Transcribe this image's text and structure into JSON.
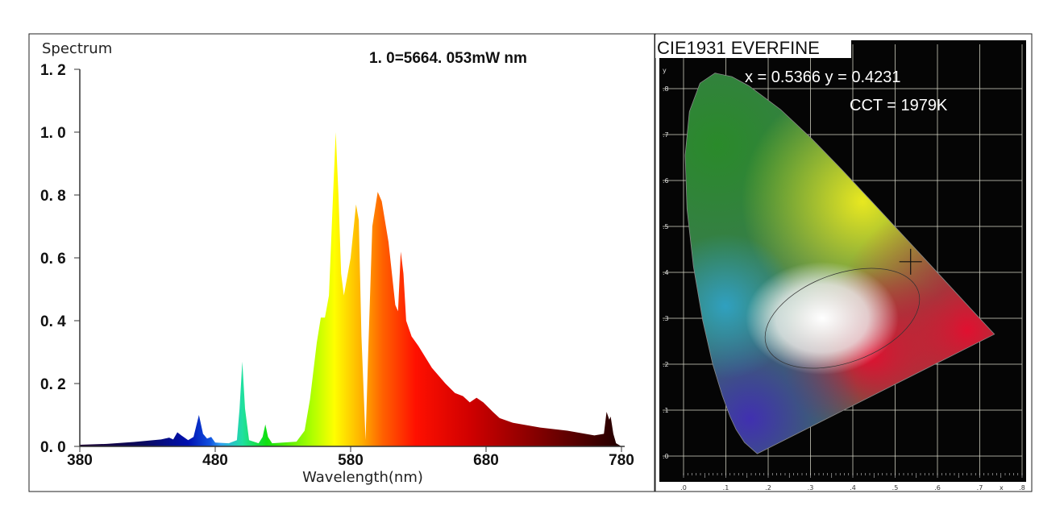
{
  "chart_data": [
    {
      "type": "area",
      "title": "Spectrum",
      "annotation": "1. 0=5664. 053mW nm",
      "xlabel": "Wavelength(nm)",
      "ylabel": "",
      "xlim": [
        380,
        780
      ],
      "ylim": [
        0,
        1.2
      ],
      "x_ticks": [
        380,
        480,
        580,
        680,
        780
      ],
      "x_tick_labels": [
        "380",
        "480",
        "580",
        "680",
        "780"
      ],
      "y_ticks": [
        0,
        0.2,
        0.4,
        0.6,
        0.8,
        1.0,
        1.2
      ],
      "y_tick_labels": [
        "0. 0",
        "0. 2",
        "0. 4",
        "0. 6",
        "0. 8",
        "1. 0",
        "1. 2"
      ],
      "grid": false,
      "series": [
        {
          "name": "Spectrum",
          "x": [
            380,
            400,
            420,
            440,
            446,
            449,
            452,
            455,
            460,
            464,
            468,
            471,
            474,
            477,
            480,
            490,
            496,
            498,
            500,
            502,
            505,
            512,
            515,
            517,
            519,
            522,
            540,
            546,
            550,
            555,
            558,
            561,
            564,
            567,
            569,
            571,
            573,
            575,
            580,
            584,
            586,
            588,
            591,
            593,
            596,
            600,
            603,
            608,
            613,
            615,
            617,
            619,
            621,
            625,
            630,
            640,
            650,
            657,
            663,
            668,
            673,
            678,
            685,
            690,
            700,
            720,
            740,
            760,
            767,
            769,
            771,
            772,
            774,
            776,
            778,
            780
          ],
          "values": [
            0.005,
            0.008,
            0.014,
            0.022,
            0.028,
            0.022,
            0.045,
            0.035,
            0.02,
            0.03,
            0.1,
            0.04,
            0.025,
            0.03,
            0.012,
            0.01,
            0.02,
            0.12,
            0.27,
            0.12,
            0.02,
            0.01,
            0.03,
            0.07,
            0.03,
            0.01,
            0.015,
            0.05,
            0.15,
            0.33,
            0.41,
            0.41,
            0.48,
            0.8,
            1.0,
            0.8,
            0.55,
            0.48,
            0.6,
            0.77,
            0.72,
            0.35,
            0.02,
            0.3,
            0.7,
            0.81,
            0.78,
            0.65,
            0.45,
            0.43,
            0.62,
            0.55,
            0.4,
            0.35,
            0.32,
            0.25,
            0.2,
            0.17,
            0.16,
            0.14,
            0.155,
            0.14,
            0.11,
            0.09,
            0.075,
            0.06,
            0.05,
            0.035,
            0.04,
            0.11,
            0.085,
            0.095,
            0.04,
            0.01,
            0.005,
            0
          ]
        }
      ]
    },
    {
      "type": "scatter",
      "title": "CIE1931 EVERFINE",
      "coord_text": "x = 0.5366 y = 0.4231",
      "cct_text": "CCT = 1979K",
      "point": {
        "x": 0.5366,
        "y": 0.4231
      },
      "xlabel": "x",
      "ylabel": "y",
      "xlim": [
        0,
        0.8
      ],
      "ylim": [
        0,
        0.8
      ],
      "x_tick_labels": [
        ".0",
        ".1",
        ".2",
        ".3",
        ".4",
        ".5",
        ".6",
        ".7",
        ".8"
      ],
      "y_tick_labels": [
        ".0",
        ".1",
        ".2",
        ".3",
        ".4",
        ".5",
        ".6",
        ".7",
        ".8"
      ],
      "grid": true
    }
  ],
  "colors": {
    "cie_background": "#050505",
    "grid": "#d8d8c8"
  }
}
